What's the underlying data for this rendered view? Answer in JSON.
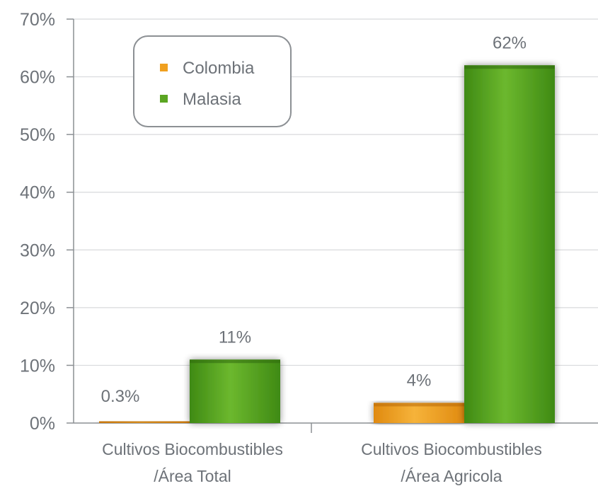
{
  "chart_data": {
    "type": "bar",
    "categories": [
      [
        "Cultivos Biocombustibles",
        "/Área Total"
      ],
      [
        "Cultivos Biocombustibles",
        "/Área Agricola"
      ]
    ],
    "series": [
      {
        "name": "Colombia",
        "values": [
          0.3,
          3.5
        ],
        "labels": [
          "0.3%",
          "4%"
        ],
        "color": "#f0a020"
      },
      {
        "name": "Malasia",
        "values": [
          11,
          62
        ],
        "labels": [
          "11%",
          "62%"
        ],
        "color": "#5aa522"
      }
    ],
    "yticks": [
      "0%",
      "10%",
      "20%",
      "30%",
      "40%",
      "50%",
      "60%",
      "70%"
    ],
    "ylim": [
      0,
      70
    ],
    "grid": true,
    "legend_position": "top-left"
  }
}
